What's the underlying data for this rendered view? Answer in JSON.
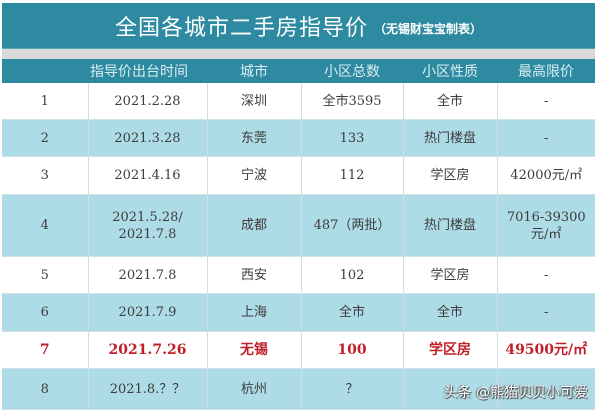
{
  "title": {
    "main": "全国各城市二手房指导价",
    "sub": "（无锡财宝宝制表）"
  },
  "colors": {
    "header_bg": "#2e8aa0",
    "strip_gray": "#d9d9d9",
    "row_alt_bg": "#addbe6",
    "highlight_red": "#c0202a"
  },
  "table": {
    "headers": [
      "",
      "指导价出台时间",
      "城市",
      "小区总数",
      "小区性质",
      "最高限价"
    ],
    "rows": [
      {
        "no": "1",
        "date": "2021.2.28",
        "city": "深圳",
        "count": "全市3595",
        "type": "全市",
        "price": "-"
      },
      {
        "no": "2",
        "date": "2021.3.28",
        "city": "东莞",
        "count": "133",
        "type": "热门楼盘",
        "price": "-"
      },
      {
        "no": "3",
        "date": "2021.4.16",
        "city": "宁波",
        "count": "112",
        "type": "学区房",
        "price": "42000元/㎡"
      },
      {
        "no": "4",
        "date": "2021.5.28/",
        "date2": "2021.7.8",
        "city": "成都",
        "count": "487（两批）",
        "type": "热门楼盘",
        "price": "7016-39300",
        "price2": "元/㎡"
      },
      {
        "no": "5",
        "date": "2021.7.8",
        "city": "西安",
        "count": "102",
        "type": "学区房",
        "price": "-"
      },
      {
        "no": "6",
        "date": "2021.7.9",
        "city": "上海",
        "count": "全市",
        "type": "全市",
        "price": "-"
      },
      {
        "no": "7",
        "date": "2021.7.26",
        "city": "无锡",
        "count": "100",
        "type": "学区房",
        "price": "49500元/㎡"
      },
      {
        "no": "8",
        "date": "2021.8.？？",
        "city": "杭州",
        "count": "？",
        "type": "",
        "price": ""
      }
    ]
  },
  "watermark": "头条 @熊猫贝贝小可爱"
}
